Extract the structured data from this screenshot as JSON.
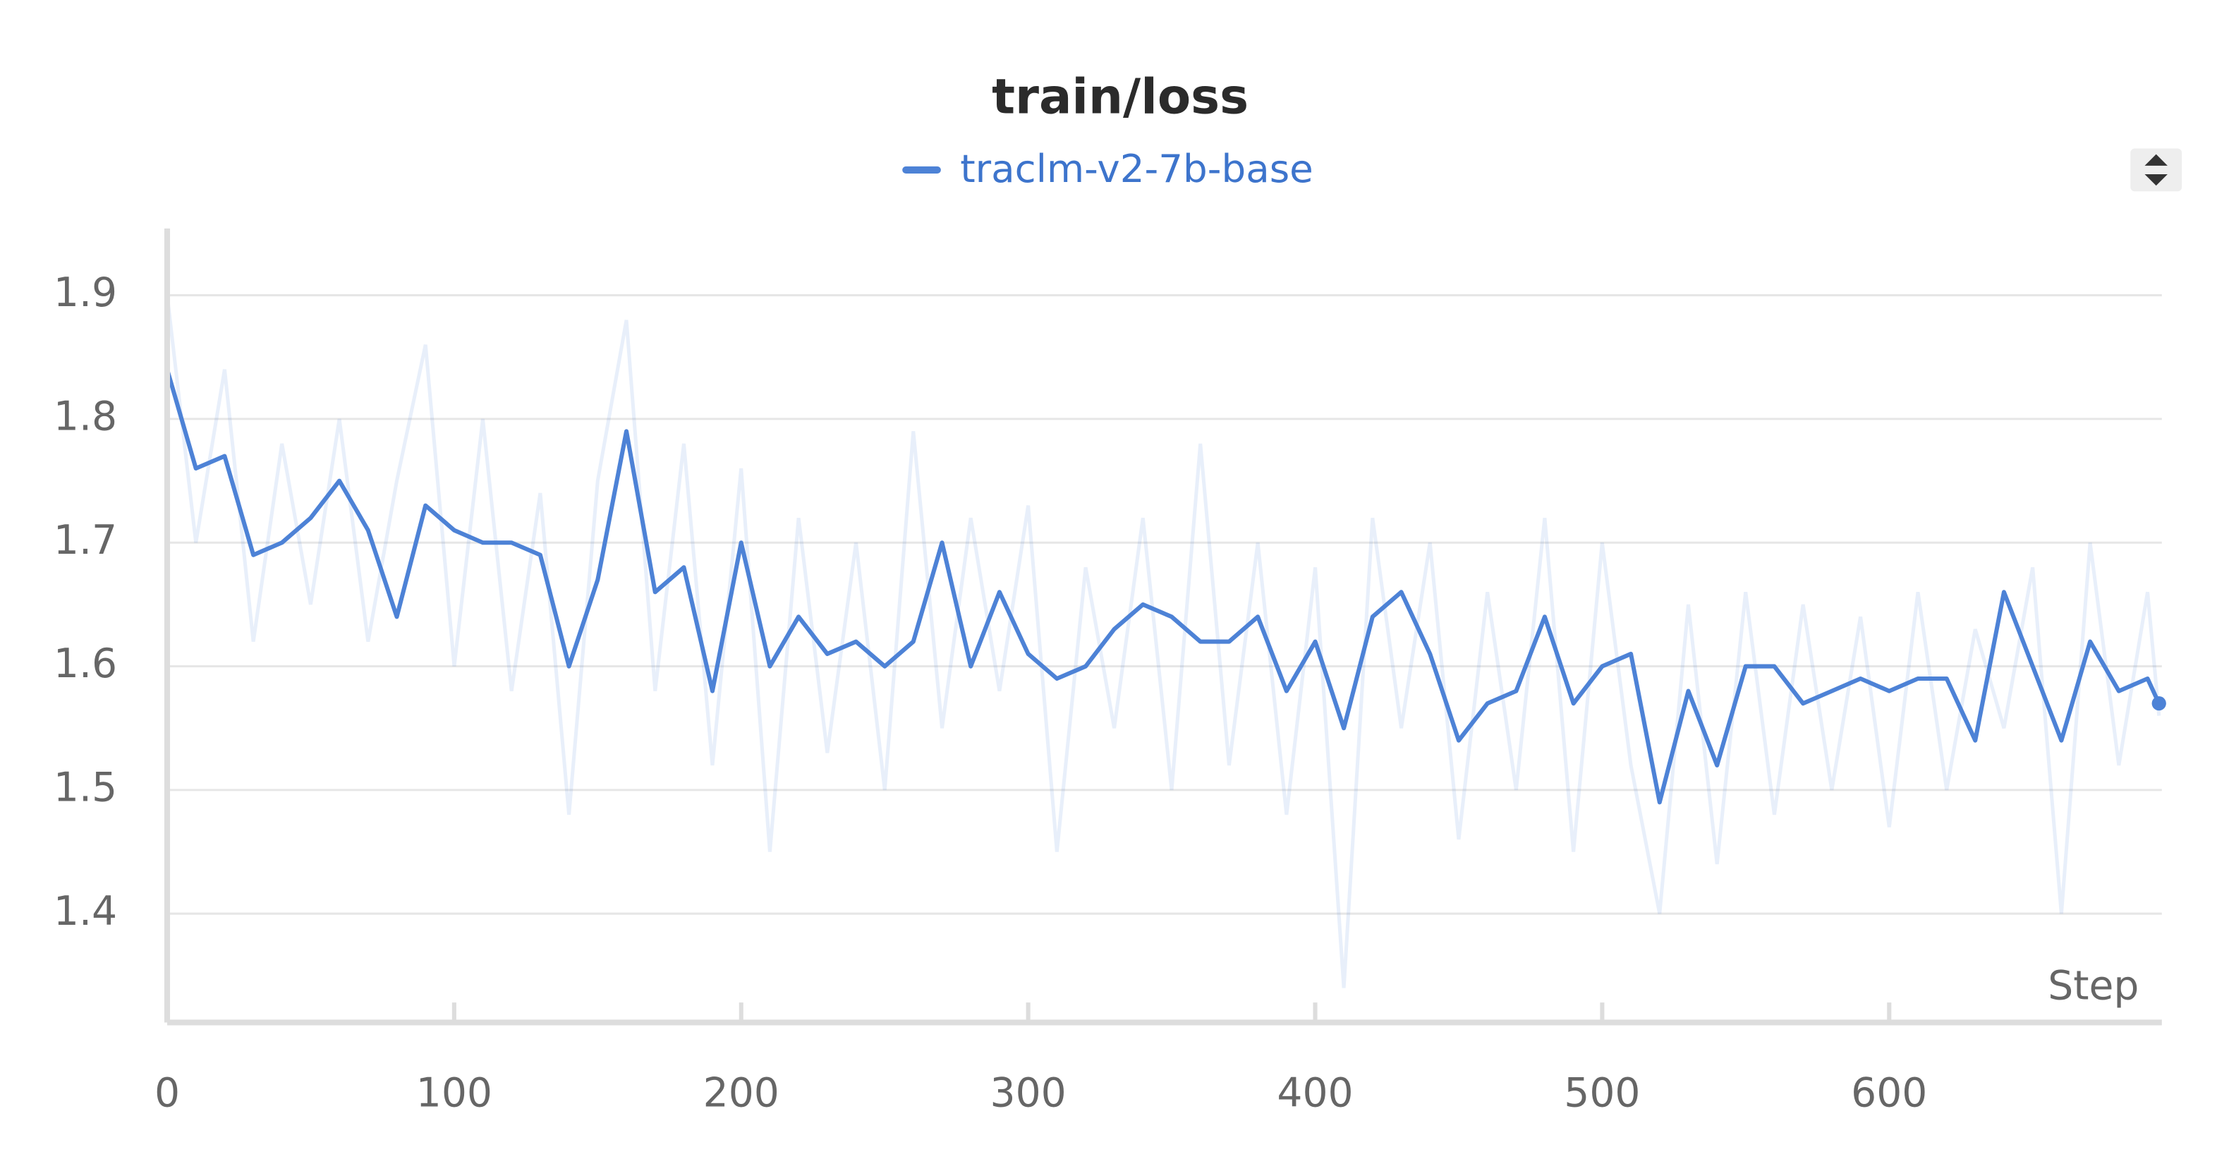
{
  "chart_data": {
    "type": "line",
    "title": "train/loss",
    "x_label": "Step",
    "x": [
      0,
      10,
      20,
      30,
      40,
      50,
      60,
      70,
      80,
      90,
      100,
      110,
      120,
      130,
      140,
      150,
      160,
      170,
      180,
      190,
      200,
      210,
      220,
      230,
      240,
      250,
      260,
      270,
      280,
      290,
      300,
      310,
      320,
      330,
      340,
      350,
      360,
      370,
      380,
      390,
      400,
      410,
      420,
      430,
      440,
      450,
      460,
      470,
      480,
      490,
      500,
      510,
      520,
      530,
      540,
      550,
      560,
      570,
      580,
      590,
      600,
      610,
      620,
      630,
      640,
      650,
      660,
      670,
      680,
      690,
      694
    ],
    "series": [
      {
        "name": "traclm-v2-7b-base",
        "color": "#4d82d6",
        "values": [
          1.84,
          1.76,
          1.77,
          1.69,
          1.7,
          1.72,
          1.75,
          1.71,
          1.64,
          1.73,
          1.71,
          1.7,
          1.7,
          1.69,
          1.6,
          1.67,
          1.79,
          1.66,
          1.68,
          1.58,
          1.7,
          1.6,
          1.64,
          1.61,
          1.62,
          1.6,
          1.62,
          1.7,
          1.6,
          1.66,
          1.61,
          1.59,
          1.6,
          1.63,
          1.65,
          1.64,
          1.62,
          1.62,
          1.64,
          1.58,
          1.62,
          1.55,
          1.64,
          1.66,
          1.61,
          1.54,
          1.57,
          1.58,
          1.64,
          1.57,
          1.6,
          1.61,
          1.49,
          1.58,
          1.52,
          1.6,
          1.6,
          1.57,
          1.58,
          1.59,
          1.58,
          1.59,
          1.59,
          1.54,
          1.66,
          1.6,
          1.54,
          1.62,
          1.58,
          1.59,
          1.57
        ],
        "raw_values": [
          1.9,
          1.7,
          1.84,
          1.62,
          1.78,
          1.65,
          1.8,
          1.62,
          1.75,
          1.86,
          1.6,
          1.8,
          1.58,
          1.74,
          1.48,
          1.75,
          1.88,
          1.58,
          1.78,
          1.52,
          1.76,
          1.45,
          1.72,
          1.53,
          1.7,
          1.5,
          1.79,
          1.55,
          1.72,
          1.58,
          1.73,
          1.45,
          1.68,
          1.55,
          1.72,
          1.5,
          1.78,
          1.52,
          1.7,
          1.48,
          1.68,
          1.34,
          1.72,
          1.55,
          1.7,
          1.46,
          1.66,
          1.5,
          1.72,
          1.45,
          1.7,
          1.52,
          1.4,
          1.65,
          1.44,
          1.66,
          1.48,
          1.65,
          1.5,
          1.64,
          1.47,
          1.66,
          1.5,
          1.63,
          1.55,
          1.68,
          1.4,
          1.7,
          1.52,
          1.66,
          1.56
        ]
      }
    ],
    "xlim": [
      0,
      695
    ],
    "xticks": [
      0,
      100,
      200,
      300,
      400,
      500,
      600
    ],
    "ylim": [
      1.312,
      1.954
    ],
    "yticks": [
      1.4,
      1.5,
      1.6,
      1.7,
      1.8,
      1.9
    ],
    "grid": true
  }
}
